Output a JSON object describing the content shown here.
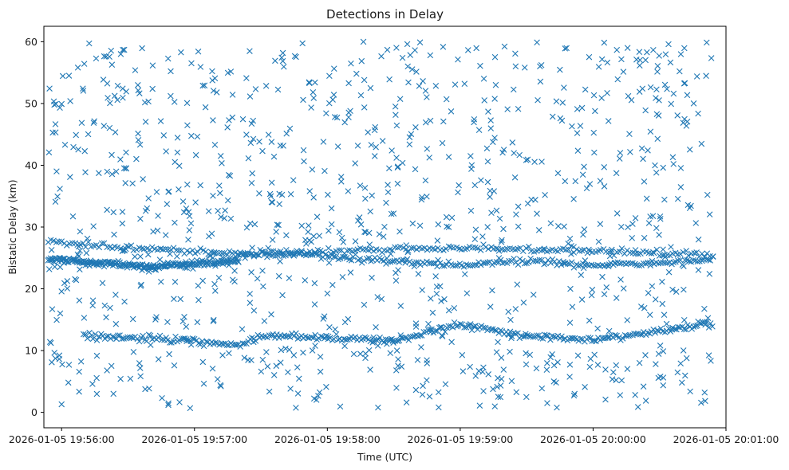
{
  "chart_data": {
    "type": "scatter",
    "title": "Detections in Delay",
    "xlabel": "Time (UTC)",
    "ylabel": "Bistatic Delay (km)",
    "marker": "x",
    "color": "#1f77b4",
    "grid": false,
    "legend": "none",
    "xlim": [
      "2026-01-05 19:55:52",
      "2026-01-05 20:01:00"
    ],
    "ylim": [
      -2.5,
      62.5
    ],
    "xticks": [
      "2026-01-05 19:56:00",
      "2026-01-05 19:57:00",
      "2026-01-05 19:58:00",
      "2026-01-05 19:59:00",
      "2026-01-05 20:00:00",
      "2026-01-05 20:01:00"
    ],
    "yticks": [
      0,
      10,
      20,
      30,
      40,
      50,
      60
    ],
    "time_span": [
      "2026-01-05 19:55:54",
      "2026-01-05 20:00:54"
    ],
    "tracks": [
      {
        "x": [
          "2026-01-05 19:55:54",
          "2026-01-05 19:56:20",
          "2026-01-05 19:56:40",
          "2026-01-05 19:57:00",
          "2026-01-05 19:57:20"
        ],
        "y": [
          24.8,
          24.2,
          23.5,
          24.0,
          24.5
        ]
      },
      {
        "x": [
          "2026-01-05 19:55:54",
          "2026-01-05 19:56:30",
          "2026-01-05 19:57:00",
          "2026-01-05 19:57:30",
          "2026-01-05 19:58:00",
          "2026-01-05 19:58:30",
          "2026-01-05 19:59:00",
          "2026-01-05 19:59:40",
          "2026-01-05 20:00:20",
          "2026-01-05 20:00:54"
        ],
        "y": [
          27.6,
          26.8,
          26.0,
          25.5,
          26.0,
          26.5,
          26.6,
          26.3,
          25.9,
          25.4
        ]
      },
      {
        "x": [
          "2026-01-05 19:57:20",
          "2026-01-05 19:57:40",
          "2026-01-05 19:58:00",
          "2026-01-05 19:58:30",
          "2026-01-05 19:59:00",
          "2026-01-05 19:59:30",
          "2026-01-05 20:00:00",
          "2026-01-05 20:00:30",
          "2026-01-05 20:00:54"
        ],
        "y": [
          25.6,
          25.9,
          25.2,
          24.4,
          23.8,
          24.5,
          23.8,
          24.2,
          24.8
        ]
      },
      {
        "x": [
          "2026-01-05 19:56:10",
          "2026-01-05 19:56:40",
          "2026-01-05 19:57:00",
          "2026-01-05 19:57:20",
          "2026-01-05 19:57:30",
          "2026-01-05 19:58:00",
          "2026-01-05 19:58:30",
          "2026-01-05 19:59:00",
          "2026-01-05 19:59:30",
          "2026-01-05 20:00:00",
          "2026-01-05 20:00:30",
          "2026-01-05 20:00:54"
        ],
        "y": [
          12.4,
          12.0,
          11.5,
          10.8,
          12.3,
          12.1,
          11.6,
          14.2,
          12.5,
          11.7,
          13.2,
          14.5
        ]
      }
    ],
    "n_track_points": [
      230,
      250,
      220,
      330
    ],
    "scatter_points": 1000,
    "delay_range": [
      0.5,
      60
    ]
  }
}
